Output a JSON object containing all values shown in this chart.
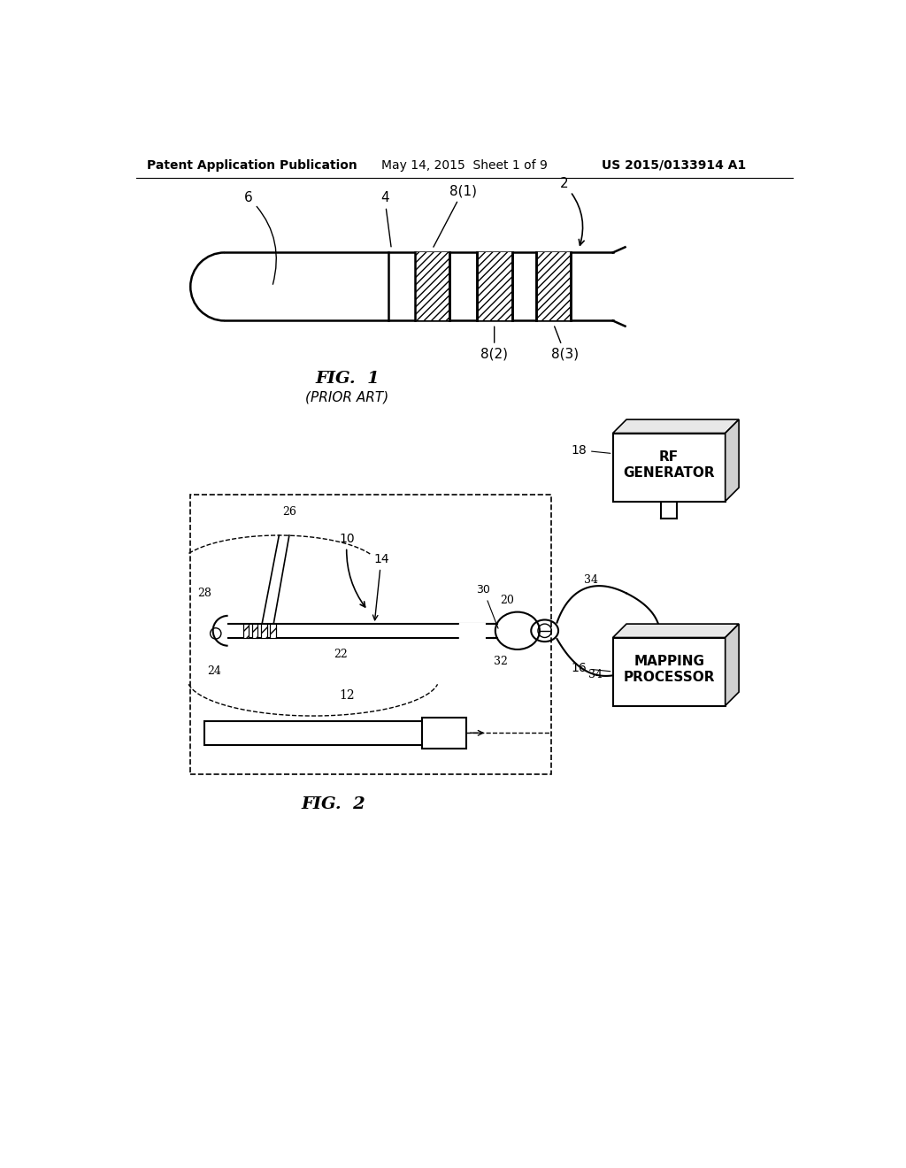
{
  "bg_color": "#ffffff",
  "header_left": "Patent Application Publication",
  "header_mid": "May 14, 2015  Sheet 1 of 9",
  "header_right": "US 2015/0133914 A1",
  "fig1_label": "FIG.  1",
  "fig1_sub": "(PRIOR ART)",
  "fig2_label": "FIG.  2",
  "rf_gen_text": "RF\nGENERATOR",
  "mapping_text": "MAPPING\nPROCESSOR",
  "lc": "#000000"
}
